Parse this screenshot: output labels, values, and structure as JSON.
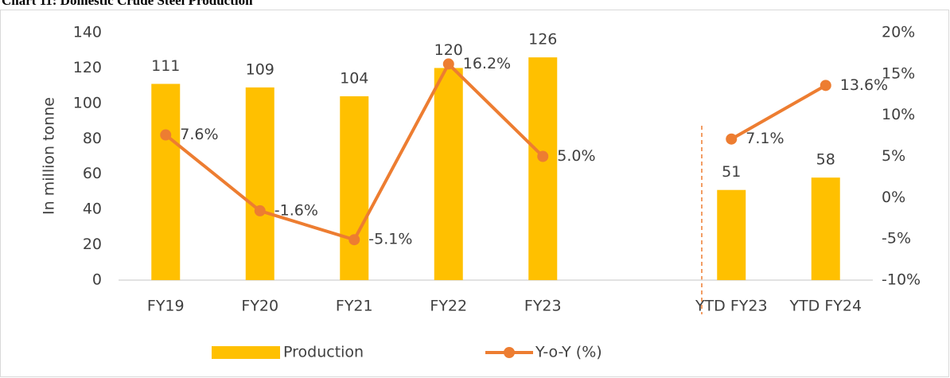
{
  "chart_data": {
    "type": "bar-line",
    "title": "Chart 11: Domestic Crude Steel Production",
    "y_label": "In million tonne",
    "categories": [
      "FY19",
      "FY20",
      "FY21",
      "FY22",
      "FY23",
      null,
      "YTD FY23",
      "YTD FY24"
    ],
    "series": [
      {
        "name": "Production",
        "type": "bar",
        "color": "#FFC000",
        "values": [
          111,
          109,
          104,
          120,
          126,
          null,
          51,
          58
        ]
      },
      {
        "name": "Y-o-Y (%)",
        "type": "line",
        "axis": "y2",
        "color": "#ED7D31",
        "values": [
          7.6,
          -1.6,
          -5.1,
          16.2,
          5.0,
          null,
          7.1,
          13.6
        ],
        "value_labels": [
          "7.6%",
          "-1.6%",
          "-5.1%",
          "16.2%",
          "5.0%",
          null,
          "7.1%",
          "13.6%"
        ]
      }
    ],
    "ylim": [
      0,
      140
    ],
    "yticks": [
      0,
      20,
      40,
      60,
      80,
      100,
      120,
      140
    ],
    "y2lim": [
      -10,
      20
    ],
    "y2ticks": [
      {
        "value": -10,
        "label": "-10%"
      },
      {
        "value": -5,
        "label": "-5%"
      },
      {
        "value": 0,
        "label": "0%"
      },
      {
        "value": 5,
        "label": "5%"
      },
      {
        "value": 10,
        "label": "10%"
      },
      {
        "value": 15,
        "label": "15%"
      },
      {
        "value": 20,
        "label": "20%"
      }
    ],
    "legend": "bottom",
    "grid": false
  }
}
